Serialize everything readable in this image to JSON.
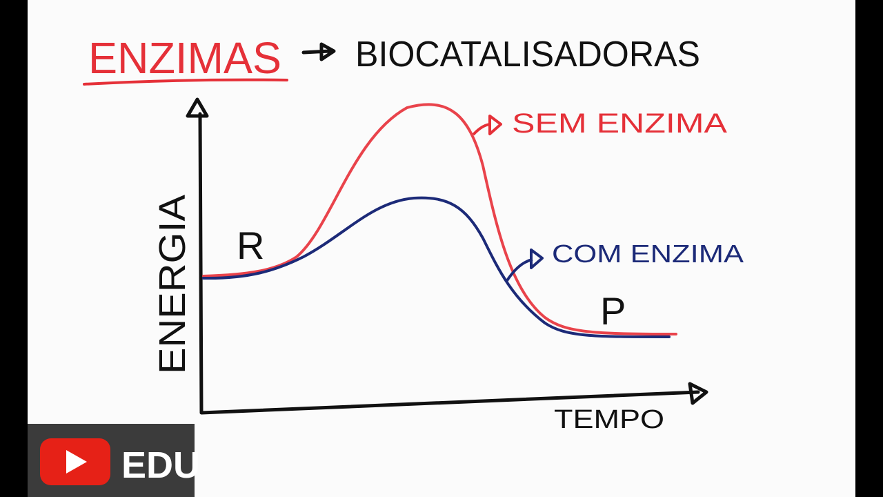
{
  "title": {
    "word": "ENZIMAS",
    "meaning": "BIOCATALISADORAS"
  },
  "graph": {
    "y_axis_label": "ENERGIA",
    "x_axis_label": "TEMPO",
    "start_label": "R",
    "end_label": "P",
    "curves": [
      {
        "label": "SEM ENZIMA"
      },
      {
        "label": "COM ENZIMA"
      }
    ]
  },
  "badge": {
    "text": "EDU"
  }
}
